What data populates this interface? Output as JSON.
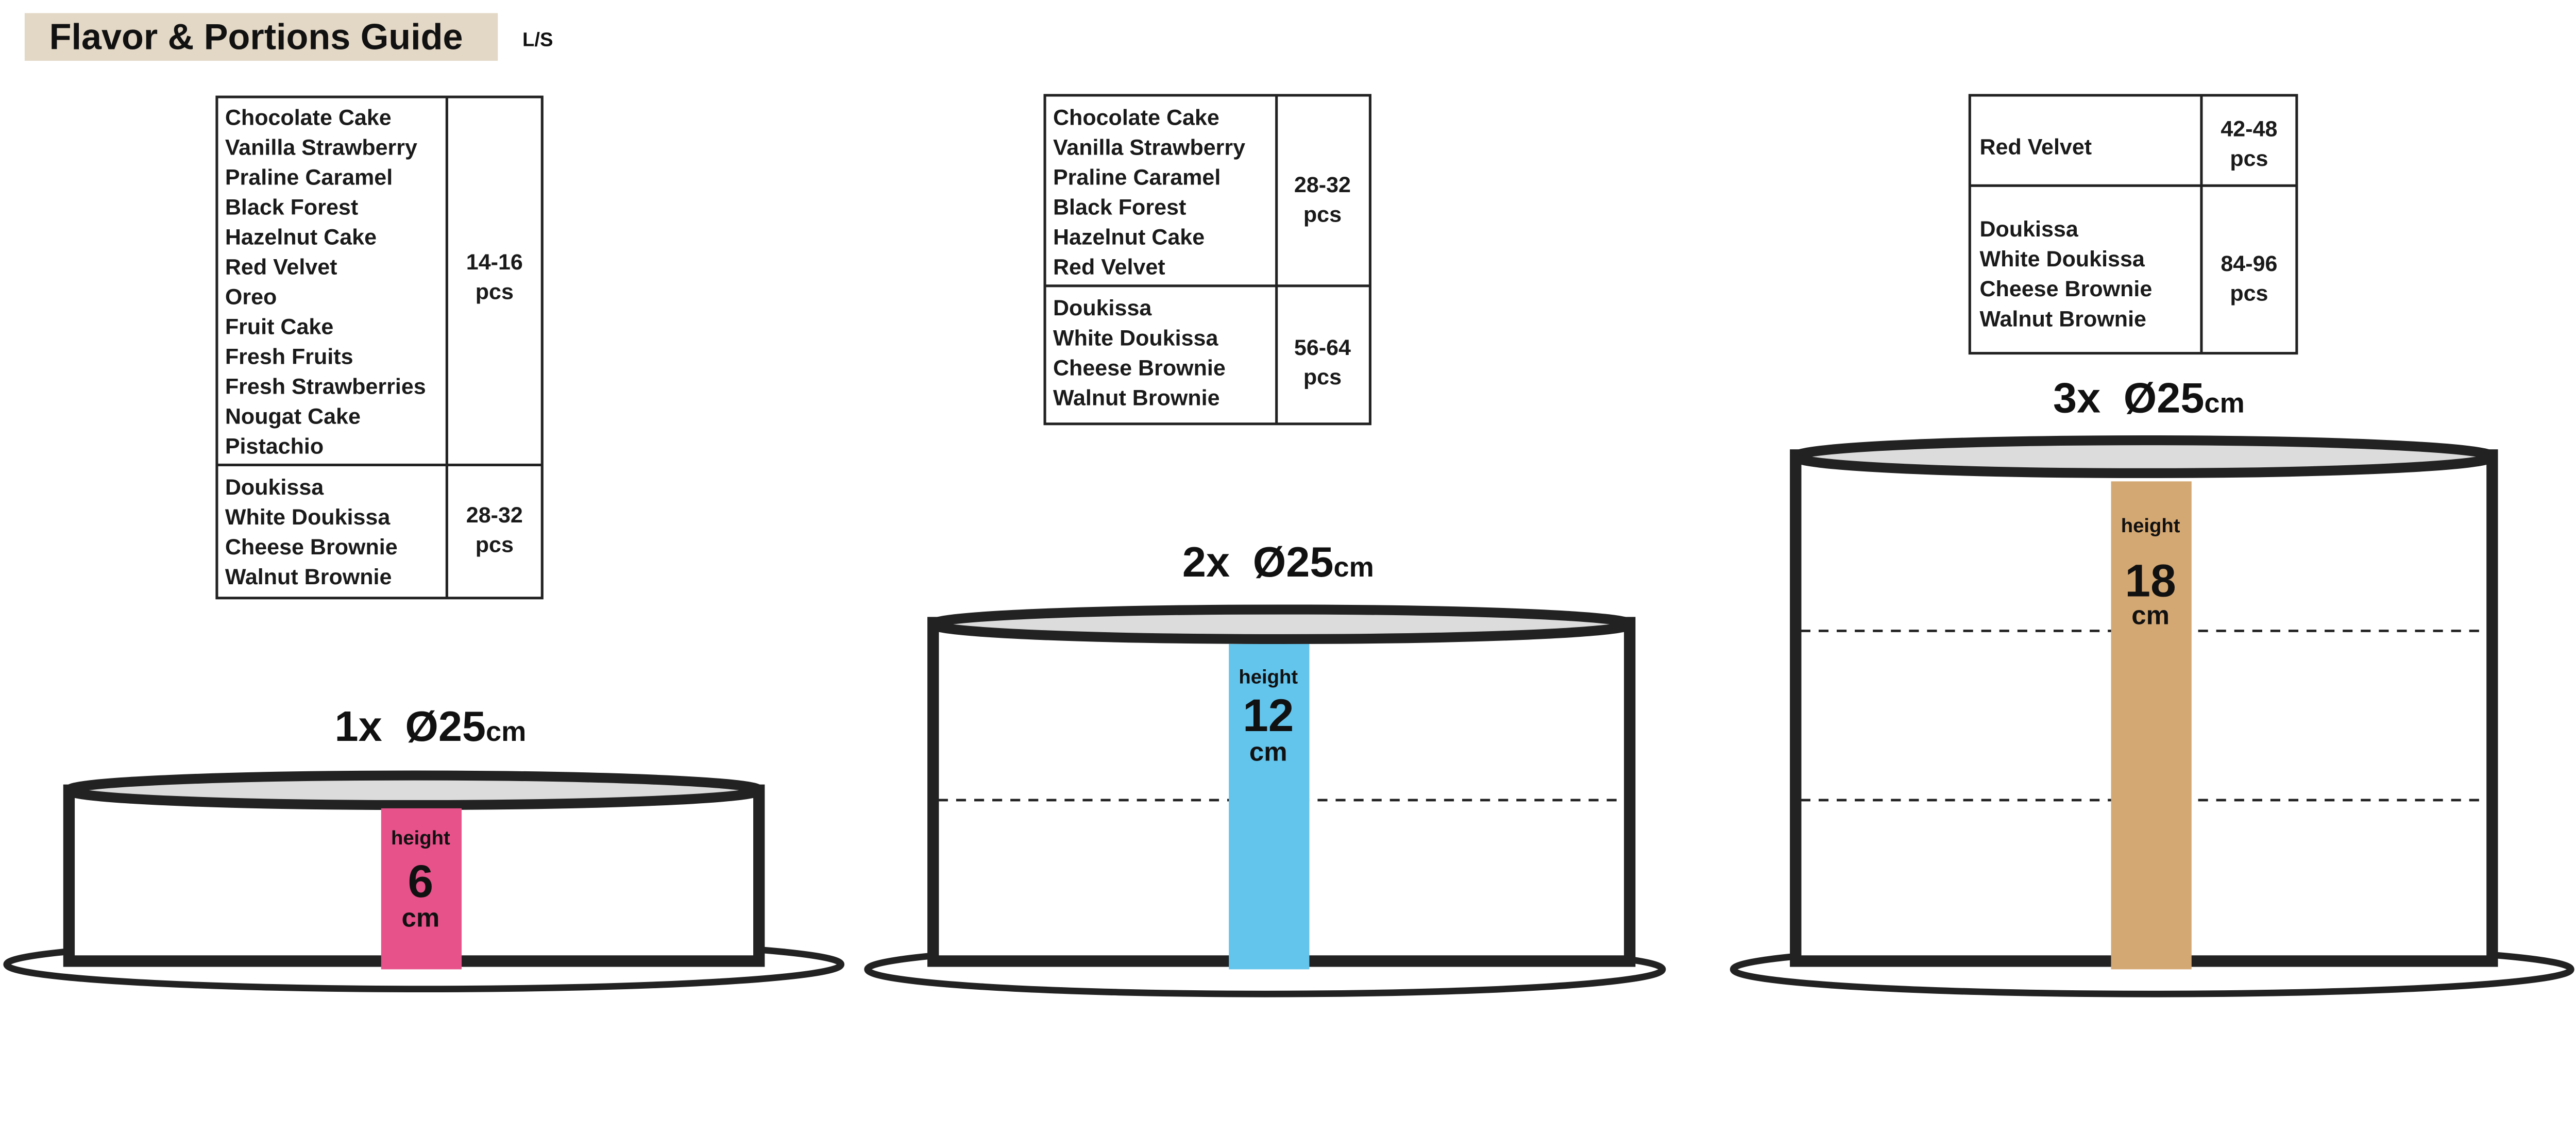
{
  "title": "Flavor & Portions Guide",
  "subtitle": "L/S",
  "colors": {
    "title_bg": "#e3d7c5",
    "pink": "#e8528a",
    "blue": "#63c4ec",
    "tan": "#d4a873"
  },
  "cakes": [
    {
      "label_prefix": "1x",
      "diameter": "Ø25",
      "unit": "cm",
      "height_label": "height",
      "height_value": "6",
      "height_unit": "cm",
      "table": [
        {
          "flavors": [
            "Chocolate Cake",
            "Vanilla Strawberry",
            "Praline Caramel",
            "Black Forest",
            "Hazelnut Cake",
            "Red Velvet",
            "Oreo",
            "Fruit Cake",
            "Fresh Fruits",
            "Fresh Strawberries",
            "Nougat Cake",
            "Pistachio"
          ],
          "qty": "14-16",
          "unit": "pcs"
        },
        {
          "flavors": [
            "Doukissa",
            "White Doukissa",
            "Cheese Brownie",
            "Walnut Brownie"
          ],
          "qty": "28-32",
          "unit": "pcs"
        }
      ]
    },
    {
      "label_prefix": "2x",
      "diameter": "Ø25",
      "unit": "cm",
      "height_label": "height",
      "height_value": "12",
      "height_unit": "cm",
      "table": [
        {
          "flavors": [
            "Chocolate Cake",
            "Vanilla Strawberry",
            "Praline Caramel",
            "Black Forest",
            "Hazelnut Cake",
            "Red Velvet"
          ],
          "qty": "28-32",
          "unit": "pcs"
        },
        {
          "flavors": [
            "Doukissa",
            "White Doukissa",
            "Cheese Brownie",
            "Walnut Brownie"
          ],
          "qty": "56-64",
          "unit": "pcs"
        }
      ]
    },
    {
      "label_prefix": "3x",
      "diameter": "Ø25",
      "unit": "cm",
      "height_label": "height",
      "height_value": "18",
      "height_unit": "cm",
      "table": [
        {
          "flavors": [
            "Red Velvet"
          ],
          "qty": "42-48",
          "unit": "pcs"
        },
        {
          "flavors": [
            "Doukissa",
            "White Doukissa",
            "Cheese Brownie",
            "Walnut Brownie"
          ],
          "qty": "84-96",
          "unit": "pcs"
        }
      ]
    }
  ]
}
